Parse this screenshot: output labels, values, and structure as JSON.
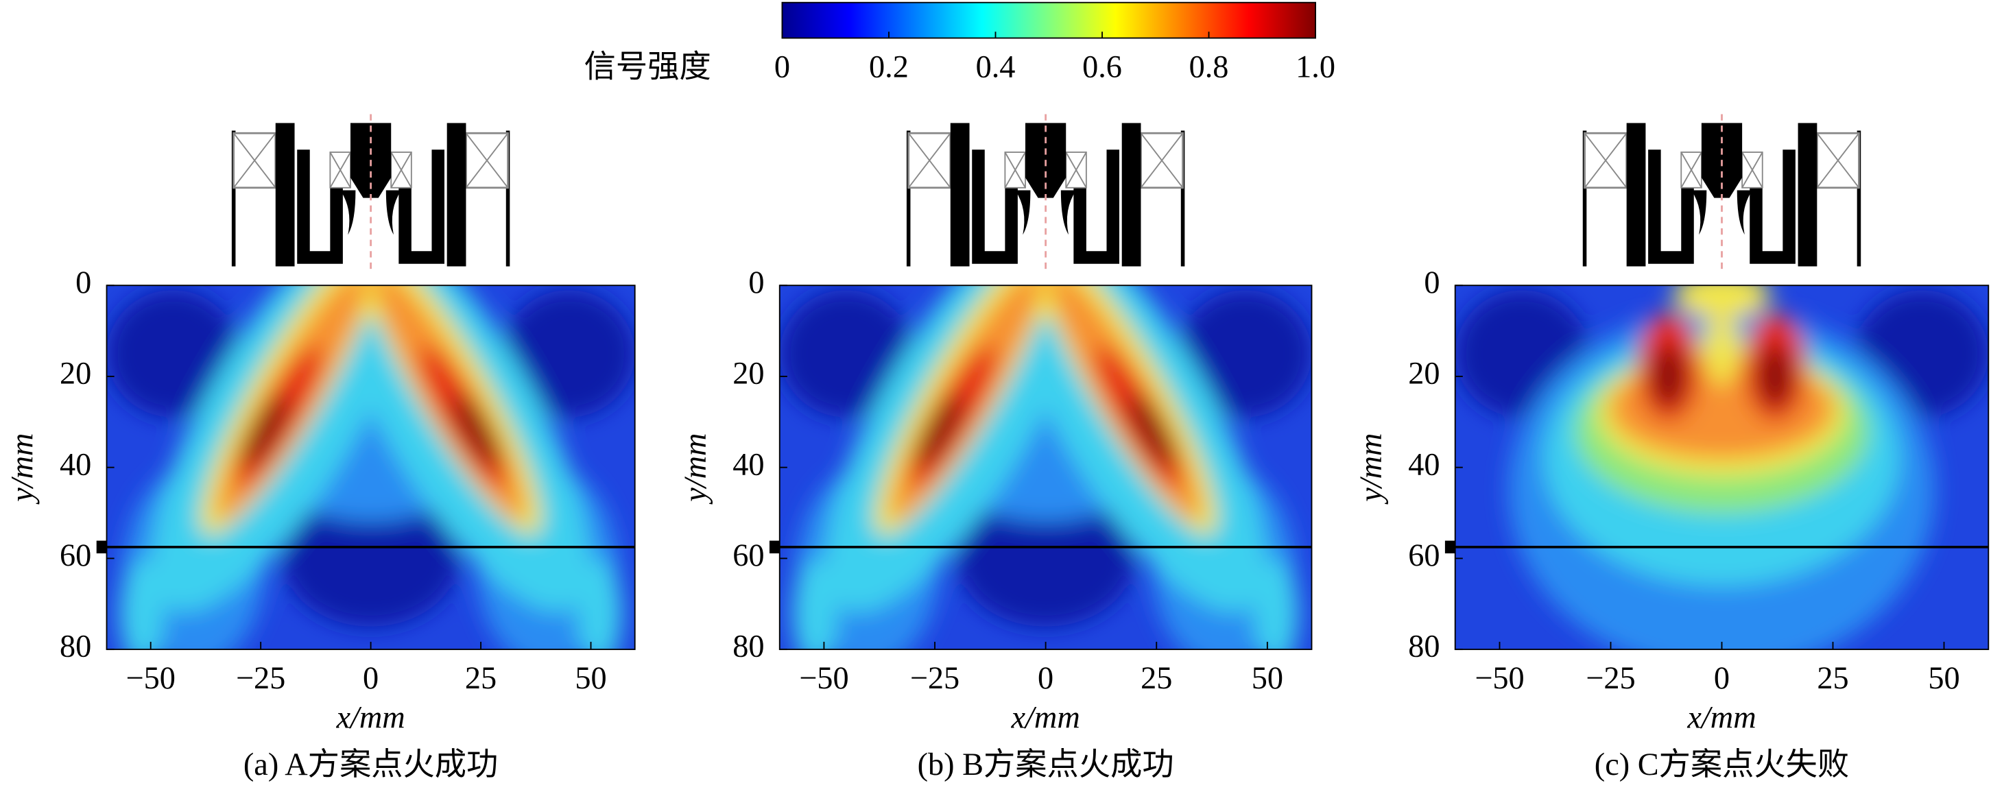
{
  "colorbar": {
    "label": "信号强度",
    "lim": [
      0,
      1
    ],
    "ticks": [
      0,
      0.2,
      0.4,
      0.6,
      0.8,
      {
        "value": 1,
        "label": "1.0"
      }
    ],
    "colors": [
      "#00008f",
      "#0000ff",
      "#0080ff",
      "#00ffff",
      "#80ff80",
      "#ffff00",
      "#ff8000",
      "#ff0000",
      "#800000"
    ]
  },
  "chart_data": [
    {
      "type": "heatmap",
      "title": "(a) A方案点火成功",
      "xlabel": "x/mm",
      "ylabel": "y/mm",
      "xlim": [
        -60,
        60
      ],
      "ylim": [
        0,
        80
      ],
      "xticks": [
        {
          "value": -50,
          "label": "−50"
        },
        {
          "value": -25,
          "label": "−25"
        },
        0,
        25,
        50
      ],
      "yticks": [
        0,
        20,
        40,
        60,
        80
      ],
      "hline_y": 57.5
    },
    {
      "type": "heatmap",
      "title": "(b) B方案点火成功",
      "xlabel": "x/mm",
      "ylabel": "y/mm",
      "xlim": [
        -60,
        60
      ],
      "ylim": [
        0,
        80
      ],
      "xticks": [
        {
          "value": -50,
          "label": "−50"
        },
        {
          "value": -25,
          "label": "−25"
        },
        0,
        25,
        50
      ],
      "yticks": [
        0,
        20,
        40,
        60,
        80
      ],
      "hline_y": 57.5
    },
    {
      "type": "heatmap",
      "title": "(c) C方案点火失败",
      "xlabel": "x/mm",
      "ylabel": "y/mm",
      "xlim": [
        -60,
        60
      ],
      "ylim": [
        0,
        80
      ],
      "xticks": [
        {
          "value": -50,
          "label": "−50"
        },
        {
          "value": -25,
          "label": "−25"
        },
        0,
        25,
        50
      ],
      "yticks": [
        0,
        20,
        40,
        60,
        80
      ],
      "hline_y": 57.5
    }
  ]
}
